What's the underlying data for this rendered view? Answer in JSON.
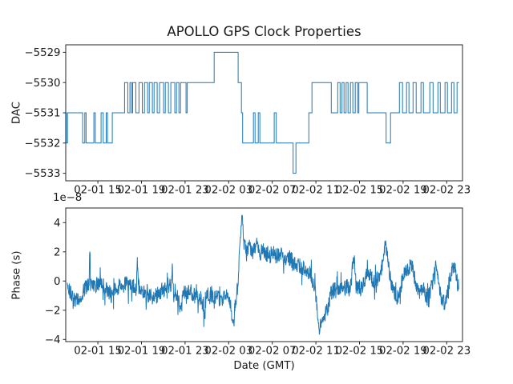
{
  "figure": {
    "title": "APOLLO GPS Clock Properties",
    "background_color": "#ffffff",
    "line_color": "#1f77b4",
    "axis_color": "#262626",
    "text_color": "#1a1a1a"
  },
  "chart_data": [
    {
      "type": "line",
      "subtype": "step-post",
      "title": "",
      "ylabel": "DAC",
      "xlabel": "",
      "x_unit": "hours since 02-01 00:00 GMT, tick labels formatted MM-DD HH",
      "xlim_hours": [
        12.05,
        48.45
      ],
      "ylim": [
        -5533.25,
        -5528.75
      ],
      "grid": false,
      "legend": null,
      "xticks": [
        {
          "hour": 15,
          "label": "02-01 15"
        },
        {
          "hour": 19,
          "label": "02-01 19"
        },
        {
          "hour": 23,
          "label": "02-01 23"
        },
        {
          "hour": 27,
          "label": "02-02 03"
        },
        {
          "hour": 31,
          "label": "02-02 07"
        },
        {
          "hour": 35,
          "label": "02-02 11"
        },
        {
          "hour": 39,
          "label": "02-02 15"
        },
        {
          "hour": 43,
          "label": "02-02 19"
        },
        {
          "hour": 47,
          "label": "02-02 23"
        }
      ],
      "yticks": [
        {
          "value": -5529,
          "label": "−5529"
        },
        {
          "value": -5530,
          "label": "−5530"
        },
        {
          "value": -5531,
          "label": "−5531"
        },
        {
          "value": -5532,
          "label": "−5532"
        },
        {
          "value": -5533,
          "label": "−5533"
        }
      ],
      "steps_hour_dac": [
        [
          12.06,
          -5531
        ],
        [
          12.1,
          -5532
        ],
        [
          12.21,
          -5531
        ],
        [
          13.6,
          -5532
        ],
        [
          13.8,
          -5531
        ],
        [
          13.92,
          -5532
        ],
        [
          14.63,
          -5531
        ],
        [
          14.76,
          -5532
        ],
        [
          15.29,
          -5531
        ],
        [
          15.49,
          -5532
        ],
        [
          15.76,
          -5531
        ],
        [
          15.88,
          -5532
        ],
        [
          16.32,
          -5531
        ],
        [
          17.45,
          -5530
        ],
        [
          17.74,
          -5531
        ],
        [
          17.94,
          -5530
        ],
        [
          18.09,
          -5531
        ],
        [
          18.19,
          -5530
        ],
        [
          18.48,
          -5531
        ],
        [
          18.77,
          -5530
        ],
        [
          19.07,
          -5531
        ],
        [
          19.27,
          -5530
        ],
        [
          19.56,
          -5531
        ],
        [
          19.71,
          -5530
        ],
        [
          20.0,
          -5531
        ],
        [
          20.15,
          -5530
        ],
        [
          20.44,
          -5531
        ],
        [
          20.66,
          -5530
        ],
        [
          21.03,
          -5531
        ],
        [
          21.18,
          -5530
        ],
        [
          21.47,
          -5531
        ],
        [
          21.69,
          -5530
        ],
        [
          22.06,
          -5531
        ],
        [
          22.21,
          -5530
        ],
        [
          22.43,
          -5531
        ],
        [
          22.58,
          -5530
        ],
        [
          23.09,
          -5531
        ],
        [
          23.2,
          -5530
        ],
        [
          25.67,
          -5529
        ],
        [
          27.87,
          -5530
        ],
        [
          28.17,
          -5531
        ],
        [
          28.28,
          -5532
        ],
        [
          29.27,
          -5531
        ],
        [
          29.42,
          -5532
        ],
        [
          29.71,
          -5531
        ],
        [
          29.86,
          -5532
        ],
        [
          31.18,
          -5531
        ],
        [
          31.37,
          -5532
        ],
        [
          32.91,
          -5533
        ],
        [
          33.17,
          -5532
        ],
        [
          34.35,
          -5531
        ],
        [
          34.64,
          -5530
        ],
        [
          36.41,
          -5531
        ],
        [
          37.0,
          -5530
        ],
        [
          37.22,
          -5531
        ],
        [
          37.4,
          -5530
        ],
        [
          37.58,
          -5531
        ],
        [
          37.77,
          -5530
        ],
        [
          37.95,
          -5531
        ],
        [
          38.17,
          -5530
        ],
        [
          38.39,
          -5531
        ],
        [
          38.61,
          -5530
        ],
        [
          38.83,
          -5531
        ],
        [
          38.94,
          -5530
        ],
        [
          39.71,
          -5531
        ],
        [
          41.44,
          -5532
        ],
        [
          41.85,
          -5531
        ],
        [
          42.66,
          -5530
        ],
        [
          42.95,
          -5531
        ],
        [
          43.32,
          -5530
        ],
        [
          43.54,
          -5531
        ],
        [
          43.91,
          -5530
        ],
        [
          44.2,
          -5531
        ],
        [
          44.64,
          -5530
        ],
        [
          44.86,
          -5531
        ],
        [
          45.45,
          -5530
        ],
        [
          45.75,
          -5531
        ],
        [
          46.19,
          -5530
        ],
        [
          46.41,
          -5531
        ],
        [
          46.85,
          -5530
        ],
        [
          47.07,
          -5531
        ],
        [
          47.44,
          -5530
        ],
        [
          47.66,
          -5531
        ],
        [
          47.95,
          -5530
        ]
      ],
      "end_hour": 48.13
    },
    {
      "type": "line",
      "title": "",
      "ylabel": "Phase (s)",
      "xlabel": "Date (GMT)",
      "offset_text": "1e−8",
      "value_scale": 1e-08,
      "x_unit": "hours since 02-01 00:00 GMT, tick labels formatted MM-DD HH",
      "xlim_hours": [
        12.05,
        48.45
      ],
      "ylim": [
        -4.15,
        5.0
      ],
      "grid": false,
      "legend": null,
      "xticks": [
        {
          "hour": 15,
          "label": "02-01 15"
        },
        {
          "hour": 19,
          "label": "02-01 19"
        },
        {
          "hour": 23,
          "label": "02-01 23"
        },
        {
          "hour": 27,
          "label": "02-02 03"
        },
        {
          "hour": 31,
          "label": "02-02 07"
        },
        {
          "hour": 35,
          "label": "02-02 11"
        },
        {
          "hour": 39,
          "label": "02-02 15"
        },
        {
          "hour": 43,
          "label": "02-02 19"
        },
        {
          "hour": 47,
          "label": "02-02 23"
        }
      ],
      "yticks": [
        {
          "value": 4,
          "label": "4"
        },
        {
          "value": 2,
          "label": "2"
        },
        {
          "value": 0,
          "label": "0"
        },
        {
          "value": -2,
          "label": "−2"
        },
        {
          "value": -4,
          "label": "−4"
        }
      ],
      "trend_landmarks_hour_value": [
        [
          12.2,
          -0.4
        ],
        [
          12.6,
          -1.0
        ],
        [
          12.9,
          -1.3
        ],
        [
          13.3,
          -1.2
        ],
        [
          13.7,
          -0.6
        ],
        [
          14.0,
          -0.35
        ],
        [
          14.2,
          -0.3
        ],
        [
          14.26,
          2.4
        ],
        [
          14.32,
          -0.3
        ],
        [
          14.7,
          -0.4
        ],
        [
          15.1,
          -0.15
        ],
        [
          15.5,
          -0.3
        ],
        [
          15.9,
          -0.7
        ],
        [
          16.3,
          -1.0
        ],
        [
          16.7,
          -0.5
        ],
        [
          17.1,
          -0.3
        ],
        [
          17.5,
          -0.15
        ],
        [
          17.9,
          -0.3
        ],
        [
          18.3,
          -0.4
        ],
        [
          18.55,
          -0.3
        ],
        [
          18.62,
          1.8
        ],
        [
          18.7,
          -0.3
        ],
        [
          19.1,
          -0.6
        ],
        [
          19.5,
          -0.9
        ],
        [
          20.0,
          -1.2
        ],
        [
          20.4,
          -1.0
        ],
        [
          20.9,
          -0.6
        ],
        [
          21.4,
          -0.35
        ],
        [
          21.75,
          -0.3
        ],
        [
          21.82,
          1.1
        ],
        [
          21.9,
          -0.5
        ],
        [
          22.3,
          -1.0
        ],
        [
          22.6,
          -2.0
        ],
        [
          22.9,
          -0.7
        ],
        [
          23.3,
          -0.8
        ],
        [
          23.7,
          -1.0
        ],
        [
          24.1,
          -1.1
        ],
        [
          24.5,
          -1.2
        ],
        [
          24.78,
          -2.4
        ],
        [
          25.0,
          -1.0
        ],
        [
          25.4,
          -0.9
        ],
        [
          25.9,
          -1.1
        ],
        [
          26.3,
          -1.3
        ],
        [
          26.7,
          -1.0
        ],
        [
          27.1,
          -1.3
        ],
        [
          27.38,
          -2.9
        ],
        [
          27.6,
          -1.6
        ],
        [
          27.85,
          -0.2
        ],
        [
          28.05,
          2.8
        ],
        [
          28.24,
          4.6
        ],
        [
          28.4,
          2.4
        ],
        [
          28.65,
          2.1
        ],
        [
          28.9,
          2.6
        ],
        [
          29.15,
          1.9
        ],
        [
          29.4,
          2.2
        ],
        [
          29.56,
          2.9
        ],
        [
          29.8,
          1.8
        ],
        [
          30.1,
          2.1
        ],
        [
          30.4,
          1.9
        ],
        [
          30.7,
          1.6
        ],
        [
          31.0,
          2.0
        ],
        [
          31.4,
          1.7
        ],
        [
          31.8,
          1.9
        ],
        [
          32.2,
          1.5
        ],
        [
          32.6,
          1.6
        ],
        [
          33.0,
          1.2
        ],
        [
          33.4,
          1.1
        ],
        [
          33.8,
          0.9
        ],
        [
          34.2,
          0.7
        ],
        [
          34.6,
          0.3
        ],
        [
          34.9,
          -0.6
        ],
        [
          35.1,
          -1.8
        ],
        [
          35.3,
          -3.5
        ],
        [
          35.55,
          -2.7
        ],
        [
          35.8,
          -2.4
        ],
        [
          36.1,
          -1.9
        ],
        [
          36.4,
          -0.8
        ],
        [
          36.7,
          -0.6
        ],
        [
          37.0,
          -0.55
        ],
        [
          37.4,
          -0.5
        ],
        [
          37.8,
          -0.4
        ],
        [
          38.2,
          -0.3
        ],
        [
          38.48,
          1.9
        ],
        [
          38.7,
          -0.4
        ],
        [
          39.0,
          -0.6
        ],
        [
          39.4,
          -0.2
        ],
        [
          39.7,
          0.6
        ],
        [
          40.0,
          0.3
        ],
        [
          40.4,
          -0.2
        ],
        [
          40.8,
          0.4
        ],
        [
          41.1,
          1.0
        ],
        [
          41.38,
          2.7
        ],
        [
          41.7,
          0.8
        ],
        [
          42.0,
          -0.5
        ],
        [
          42.3,
          -1.0
        ],
        [
          42.6,
          -1.2
        ],
        [
          42.95,
          0.2
        ],
        [
          43.3,
          0.7
        ],
        [
          43.6,
          1.0
        ],
        [
          43.9,
          1.1
        ],
        [
          44.2,
          -0.6
        ],
        [
          44.5,
          -0.9
        ],
        [
          44.85,
          -0.3
        ],
        [
          45.2,
          -1.2
        ],
        [
          45.5,
          -0.7
        ],
        [
          45.8,
          0.2
        ],
        [
          46.05,
          1.1
        ],
        [
          46.3,
          -0.5
        ],
        [
          46.6,
          -1.4
        ],
        [
          46.95,
          -1.5
        ],
        [
          47.2,
          -0.2
        ],
        [
          47.5,
          0.9
        ],
        [
          47.75,
          1.1
        ],
        [
          48.0,
          -0.3
        ],
        [
          48.1,
          -0.2
        ]
      ],
      "noise_amplitude": 0.55,
      "start_hour": 12.2,
      "end_hour": 48.1,
      "points": 1500
    }
  ]
}
